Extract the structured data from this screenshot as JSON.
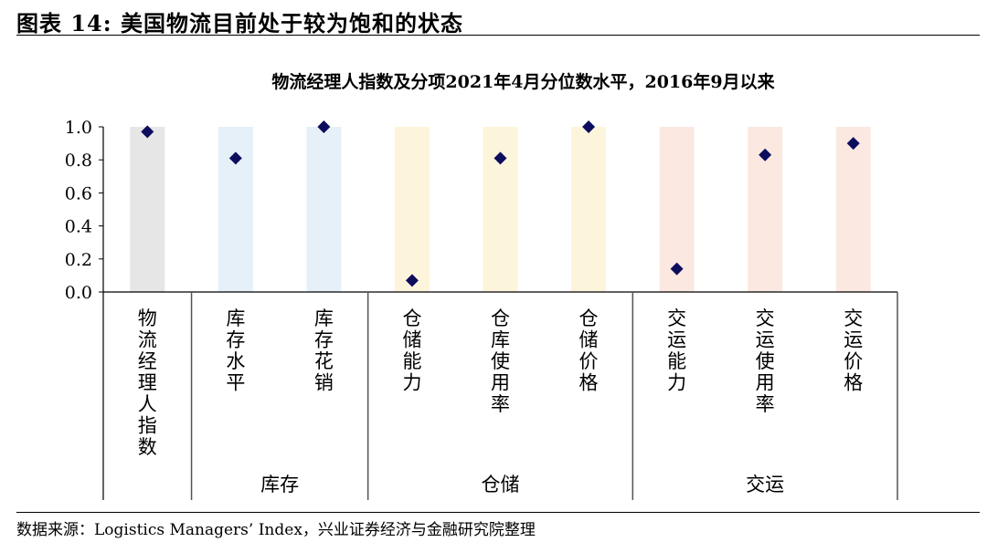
{
  "figure_title": "图表 14:  美国物流目前处于较为饱和的状态",
  "source": "数据来源：Logistics Managers’ Index，兴业证券经济与金融研究院整理",
  "chart_data": {
    "type": "scatter",
    "title": "物流经理人指数及分项2021年4月分位数水平，2016年9月以来",
    "ylim": [
      0,
      1
    ],
    "yticks": [
      "0.0",
      "0.2",
      "0.4",
      "0.6",
      "0.8",
      "1.0"
    ],
    "categories": [
      "物流经理人指数",
      "库存水平",
      "库存花销",
      "仓储能力",
      "仓库使用率",
      "仓储价格",
      "交运能力",
      "交运使用率",
      "交运价格"
    ],
    "values": [
      0.97,
      0.81,
      1.0,
      0.07,
      0.81,
      1.0,
      0.14,
      0.83,
      0.9
    ],
    "groups": [
      {
        "label": "",
        "span": [
          0,
          0
        ],
        "color": "#e6e6e6"
      },
      {
        "label": "库存",
        "span": [
          1,
          2
        ],
        "color": "#e6f0f9"
      },
      {
        "label": "仓储",
        "span": [
          3,
          5
        ],
        "color": "#fdf4dc"
      },
      {
        "label": "交运",
        "span": [
          6,
          8
        ],
        "color": "#fbe9e1"
      }
    ],
    "marker_color": "#0d0d5e",
    "grid": false
  }
}
